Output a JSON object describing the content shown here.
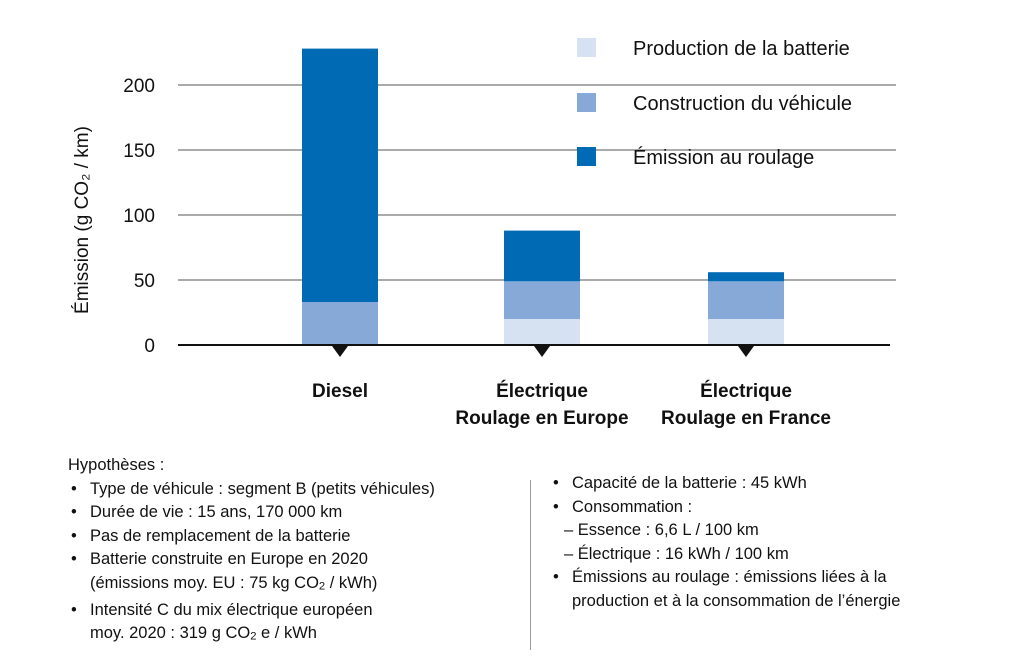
{
  "chart_data": {
    "type": "bar",
    "stacked": true,
    "ylabel": "Émission (g CO₂ / km)",
    "ylim": [
      0,
      225
    ],
    "yticks": [
      0,
      50,
      100,
      150,
      200
    ],
    "categories": [
      [
        "Diesel"
      ],
      [
        "Électrique",
        "Roulage en Europe"
      ],
      [
        "Électrique",
        "Roulage en France"
      ]
    ],
    "series": [
      {
        "name": "Production de la batterie",
        "color": "#d6e2f2",
        "values": [
          0,
          20,
          20
        ]
      },
      {
        "name": "Construction du véhicule",
        "color": "#86a9d8",
        "values": [
          33,
          29,
          29
        ]
      },
      {
        "name": "Émission au roulage",
        "color": "#006ab5",
        "values": [
          195,
          39,
          7
        ]
      }
    ],
    "legend_position": "top-right",
    "grid": "horizontal"
  },
  "notes": {
    "heading": "Hypothèses :",
    "left_items": [
      "Type de véhicule : segment B (petits véhicules)",
      "Durée de vie : 15 ans, 170 000 km",
      "Pas de remplacement de la batterie",
      "Batterie construite en Europe en 2020",
      "(émissions moy. EU : 75 kg CO",
      "2",
      " / kWh)",
      "Intensité C du mix électrique européen",
      "moy. 2020 : 319 g CO",
      "2",
      " e / kWh"
    ],
    "right_items": [
      "Capacité de la batterie : 45 kWh",
      "Consommation :",
      "– Essence : 6,6 L / 100 km",
      "– Électrique : 16 kWh / 100 km",
      "Émissions au roulage : émissions liées à la",
      "production et à la consommation de l’énergie"
    ]
  }
}
